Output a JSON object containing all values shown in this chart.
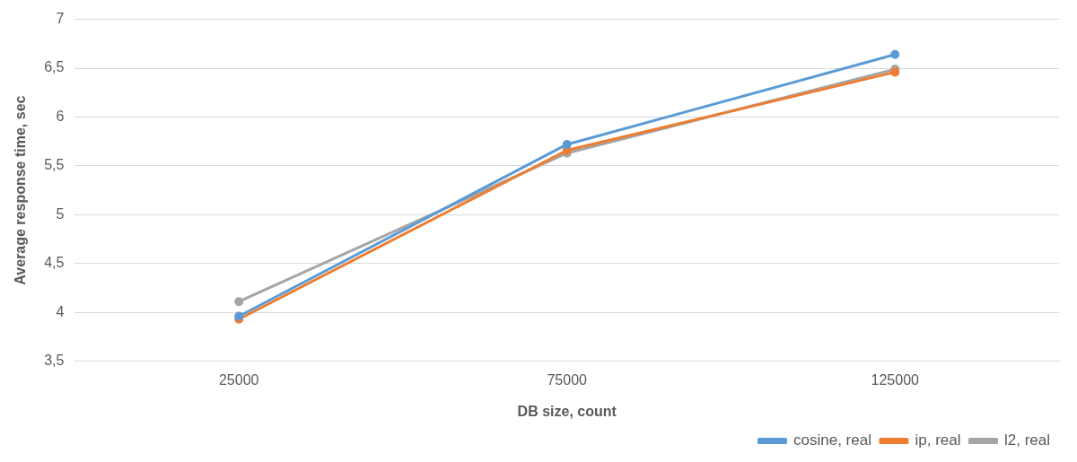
{
  "chart_data": {
    "type": "line",
    "xlabel": "DB size, count",
    "ylabel": "Average response time, sec",
    "categories": [
      "25000",
      "75000",
      "125000"
    ],
    "series": [
      {
        "name": "cosine, real",
        "color": "#5b9bd5",
        "values": [
          3.96,
          5.72,
          6.64
        ]
      },
      {
        "name": "ip, real",
        "color": "#ed7d31",
        "values": [
          3.93,
          5.66,
          6.46
        ]
      },
      {
        "name": "l2, real",
        "color": "#a5a5a5",
        "values": [
          4.11,
          5.63,
          6.49
        ]
      }
    ],
    "ylim": [
      3.5,
      7
    ],
    "yticks": [
      {
        "value": 3.5,
        "label": "3,5"
      },
      4,
      {
        "value": 4.5,
        "label": "4,5"
      },
      5,
      {
        "value": 5.5,
        "label": "5,5"
      },
      6,
      {
        "value": 6.5,
        "label": "6,5"
      },
      7
    ],
    "grid": "y",
    "legend": "bottom right",
    "marker": "circle",
    "line_style": "solid"
  }
}
